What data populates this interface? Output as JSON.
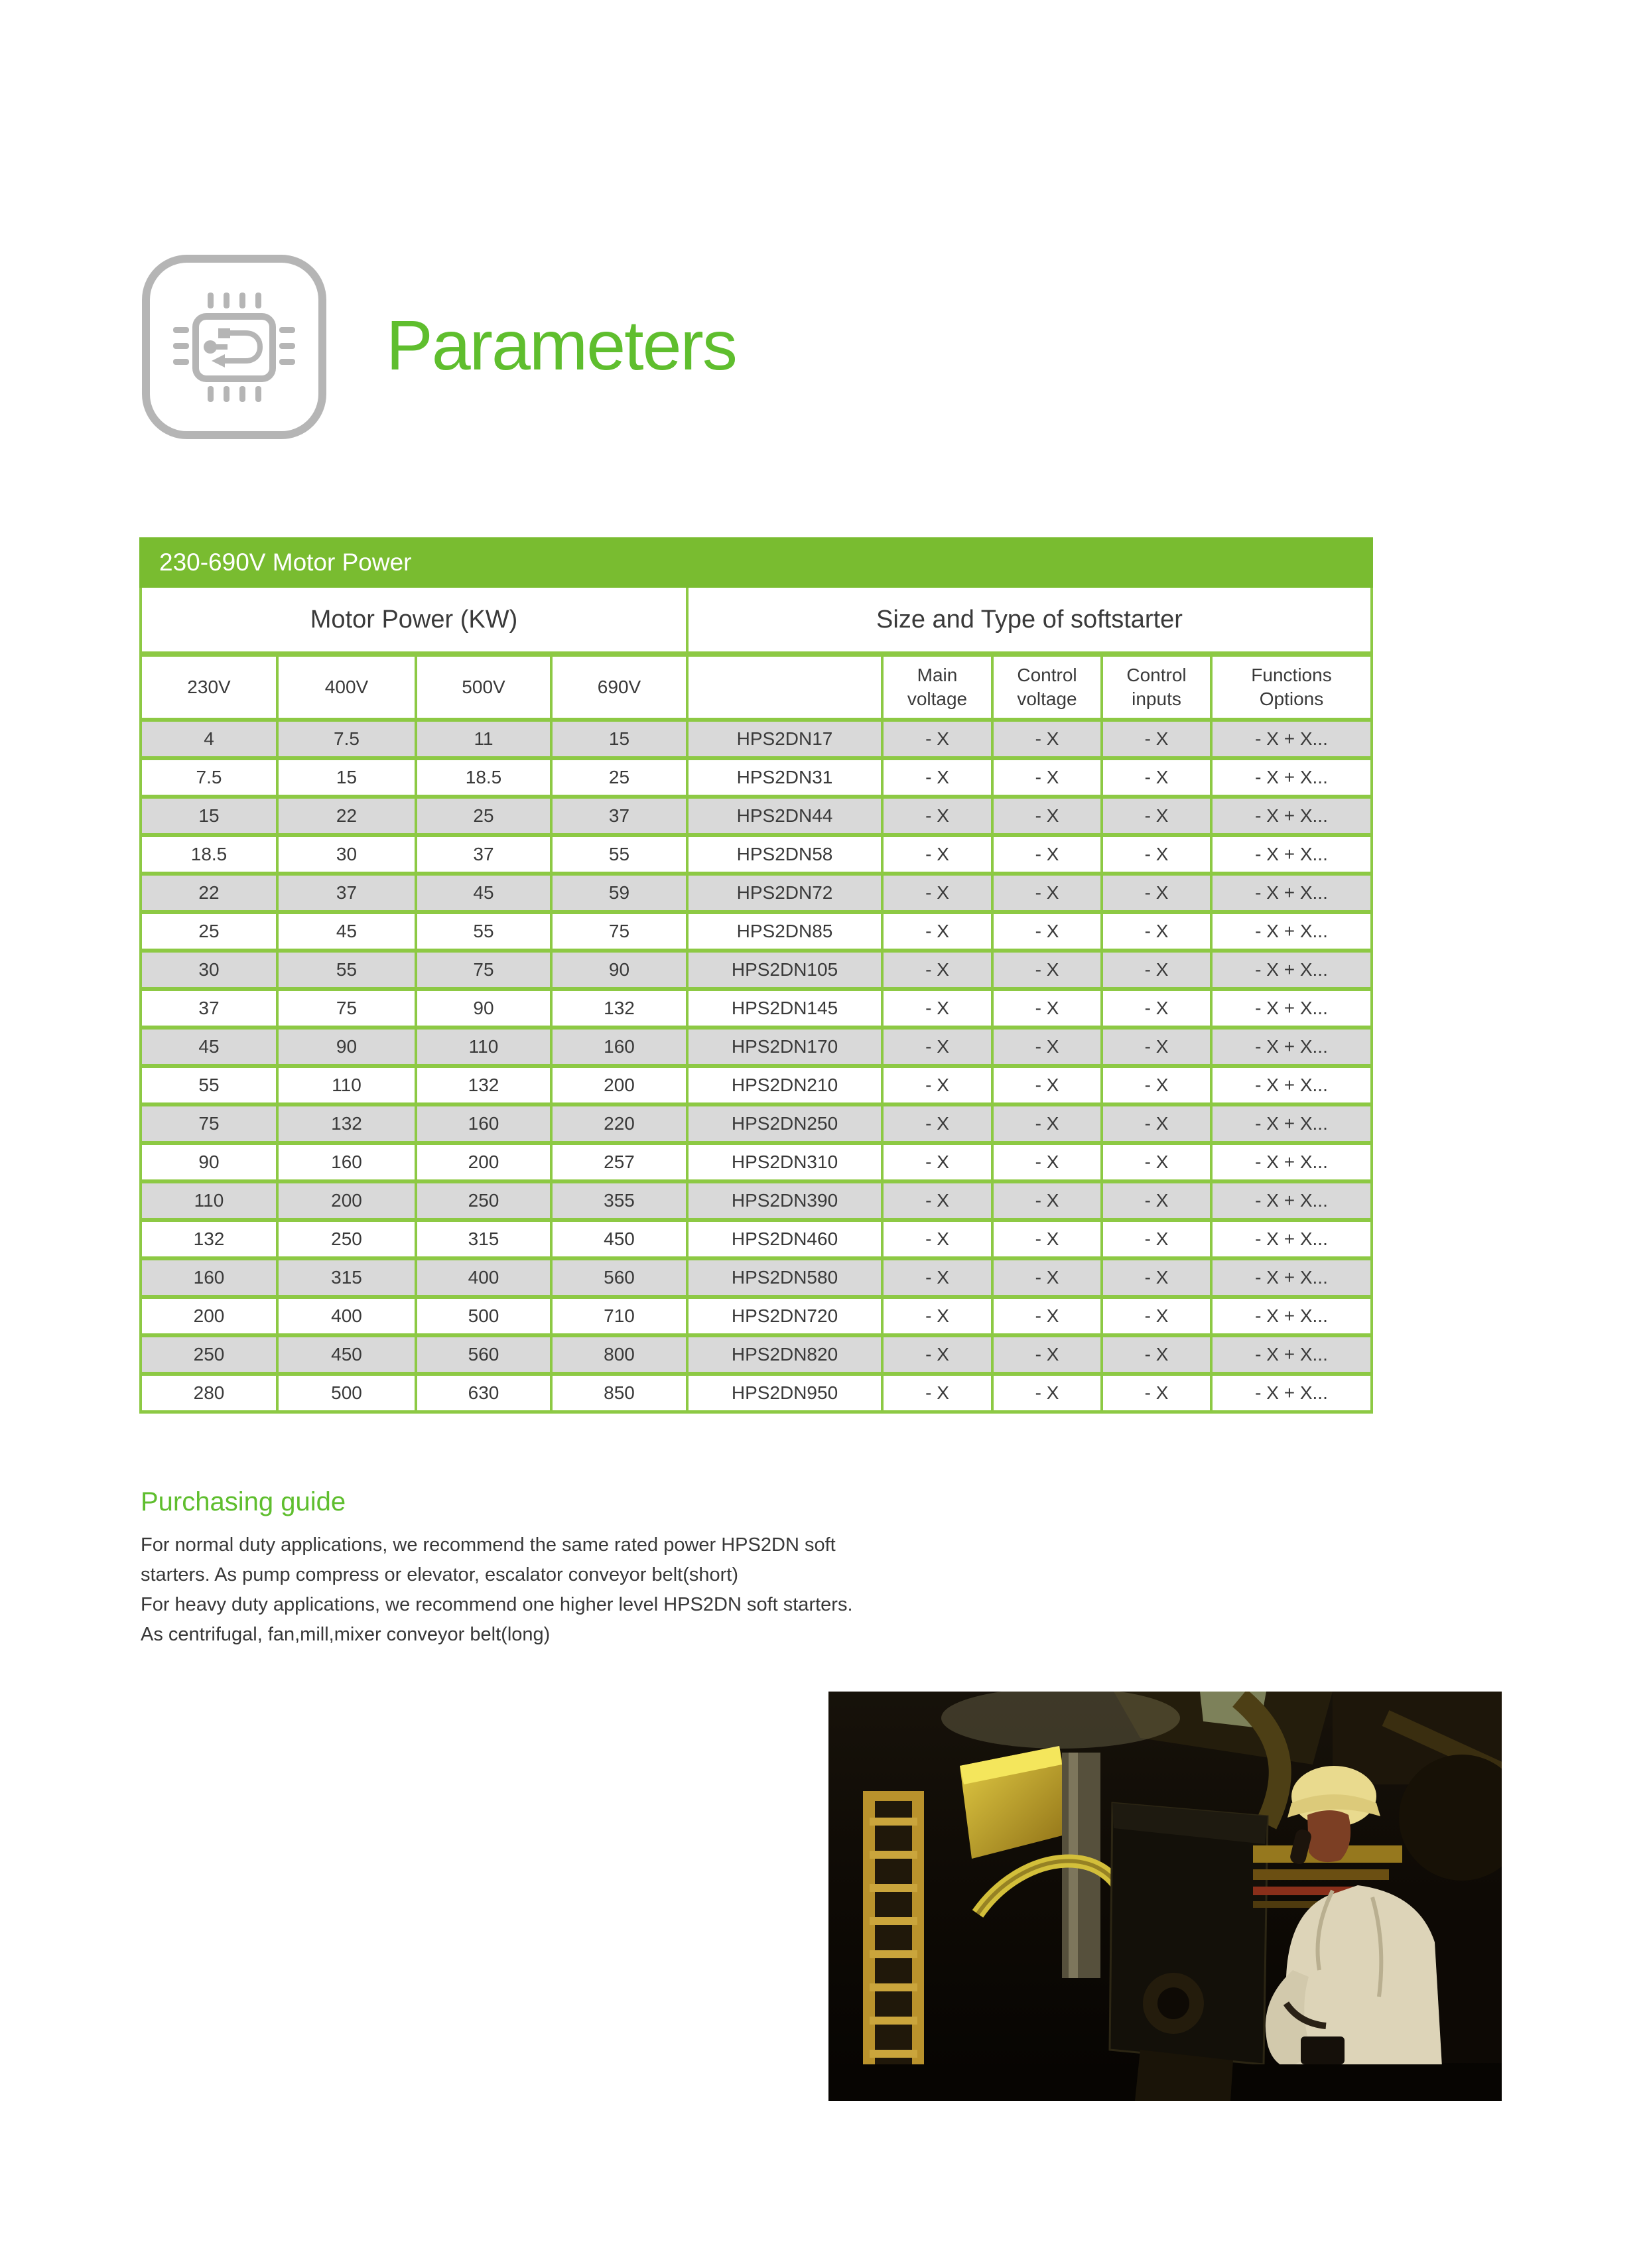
{
  "header": {
    "title": "Parameters",
    "icon": "chip-icon"
  },
  "table": {
    "title": "230-690V Motor Power",
    "group_headers": [
      "Motor Power (KW)",
      "Size and Type of softstarter"
    ],
    "columns": [
      "230V",
      "400V",
      "500V",
      "690V",
      "",
      "Main\nvoltage",
      "Control\nvoltage",
      "Control\ninputs",
      "Functions\nOptions"
    ],
    "rows": [
      [
        "4",
        "7.5",
        "11",
        "15",
        "HPS2DN17",
        "- X",
        "- X",
        "- X",
        "- X + X..."
      ],
      [
        "7.5",
        "15",
        "18.5",
        "25",
        "HPS2DN31",
        "- X",
        "- X",
        "- X",
        "- X + X..."
      ],
      [
        "15",
        "22",
        "25",
        "37",
        "HPS2DN44",
        "- X",
        "- X",
        "- X",
        "- X + X..."
      ],
      [
        "18.5",
        "30",
        "37",
        "55",
        "HPS2DN58",
        "- X",
        "- X",
        "- X",
        "- X + X..."
      ],
      [
        "22",
        "37",
        "45",
        "59",
        "HPS2DN72",
        "- X",
        "- X",
        "- X",
        "- X + X..."
      ],
      [
        "25",
        "45",
        "55",
        "75",
        "HPS2DN85",
        "- X",
        "- X",
        "- X",
        "- X + X..."
      ],
      [
        "30",
        "55",
        "75",
        "90",
        "HPS2DN105",
        "- X",
        "- X",
        "- X",
        "- X + X..."
      ],
      [
        "37",
        "75",
        "90",
        "132",
        "HPS2DN145",
        "- X",
        "- X",
        "- X",
        "- X + X..."
      ],
      [
        "45",
        "90",
        "110",
        "160",
        "HPS2DN170",
        "- X",
        "- X",
        "- X",
        "- X + X..."
      ],
      [
        "55",
        "110",
        "132",
        "200",
        "HPS2DN210",
        "- X",
        "- X",
        "- X",
        "- X + X..."
      ],
      [
        "75",
        "132",
        "160",
        "220",
        "HPS2DN250",
        "- X",
        "- X",
        "- X",
        "- X + X..."
      ],
      [
        "90",
        "160",
        "200",
        "257",
        "HPS2DN310",
        "- X",
        "- X",
        "- X",
        "- X + X..."
      ],
      [
        "110",
        "200",
        "250",
        "355",
        "HPS2DN390",
        "- X",
        "- X",
        "- X",
        "- X + X..."
      ],
      [
        "132",
        "250",
        "315",
        "450",
        "HPS2DN460",
        "- X",
        "- X",
        "- X",
        "- X + X..."
      ],
      [
        "160",
        "315",
        "400",
        "560",
        "HPS2DN580",
        "- X",
        "- X",
        "- X",
        "- X + X..."
      ],
      [
        "200",
        "400",
        "500",
        "710",
        "HPS2DN720",
        "- X",
        "- X",
        "- X",
        "- X + X..."
      ],
      [
        "250",
        "450",
        "560",
        "800",
        "HPS2DN820",
        "- X",
        "- X",
        "- X",
        "- X + X..."
      ],
      [
        "280",
        "500",
        "630",
        "850",
        "HPS2DN950",
        "- X",
        "- X",
        "- X",
        "- X + X..."
      ]
    ]
  },
  "guide": {
    "heading": "Purchasing guide",
    "lines": [
      "For normal duty applications, we recommend the same rated power HPS2DN soft",
      "starters. As pump compress or elevator, escalator conveyor belt(short)",
      "For heavy duty applications, we recommend one higher level HPS2DN soft starters.",
      "As centrifugal, fan,mill,mixer conveyor belt(long)"
    ]
  },
  "photo": {
    "name": "engineer-inspecting-plant-photo"
  },
  "colors": {
    "bar_green": "#79bc30",
    "border_green": "#8dc944",
    "heading_green": "#5fbe2e",
    "row_gray": "#d9d9d9",
    "title_text": "#ffffff",
    "body_text": "#3f3f3f"
  }
}
